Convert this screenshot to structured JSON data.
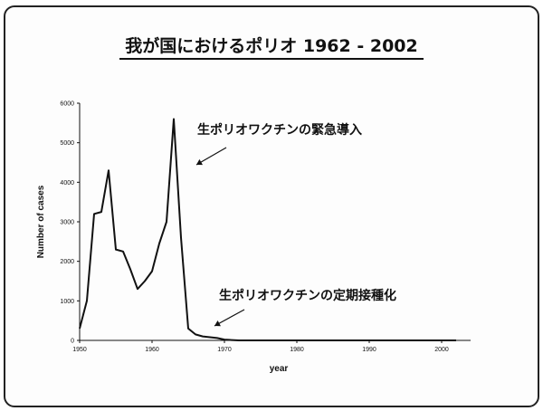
{
  "chart_data": {
    "type": "line",
    "title": "我が国におけるポリオ 1962 - 2002",
    "xlabel": "year",
    "ylabel": "Number of cases",
    "xlim": [
      1950,
      2004
    ],
    "ylim": [
      0,
      6000
    ],
    "x_ticks": [
      1950,
      1960,
      1970,
      1980,
      1990,
      2000
    ],
    "y_ticks": [
      0,
      1000,
      2000,
      3000,
      4000,
      5000,
      6000
    ],
    "grid": false,
    "legend": "none",
    "series": [
      {
        "x": [
          1950,
          1951,
          1952,
          1953,
          1954,
          1955,
          1956,
          1957,
          1958,
          1959,
          1960,
          1961,
          1962,
          1963,
          1964,
          1965,
          1966,
          1967,
          1968,
          1969,
          1970,
          1971,
          1972,
          1975,
          1980,
          1985,
          1990,
          1995,
          2000,
          2002
        ],
        "y": [
          300,
          1000,
          3200,
          3250,
          4300,
          2300,
          2250,
          1800,
          1300,
          1500,
          1750,
          2450,
          3000,
          5600,
          2600,
          300,
          150,
          100,
          80,
          60,
          20,
          10,
          0,
          0,
          0,
          0,
          0,
          0,
          0,
          0
        ],
        "color": "#111111"
      }
    ],
    "annotations": [
      {
        "text": "生ポリオワクチンの緊急導入",
        "x": 1963.5,
        "y": 4500
      },
      {
        "text": "生ポリオワクチンの定期接種化",
        "x": 1968,
        "y": 350
      }
    ]
  }
}
